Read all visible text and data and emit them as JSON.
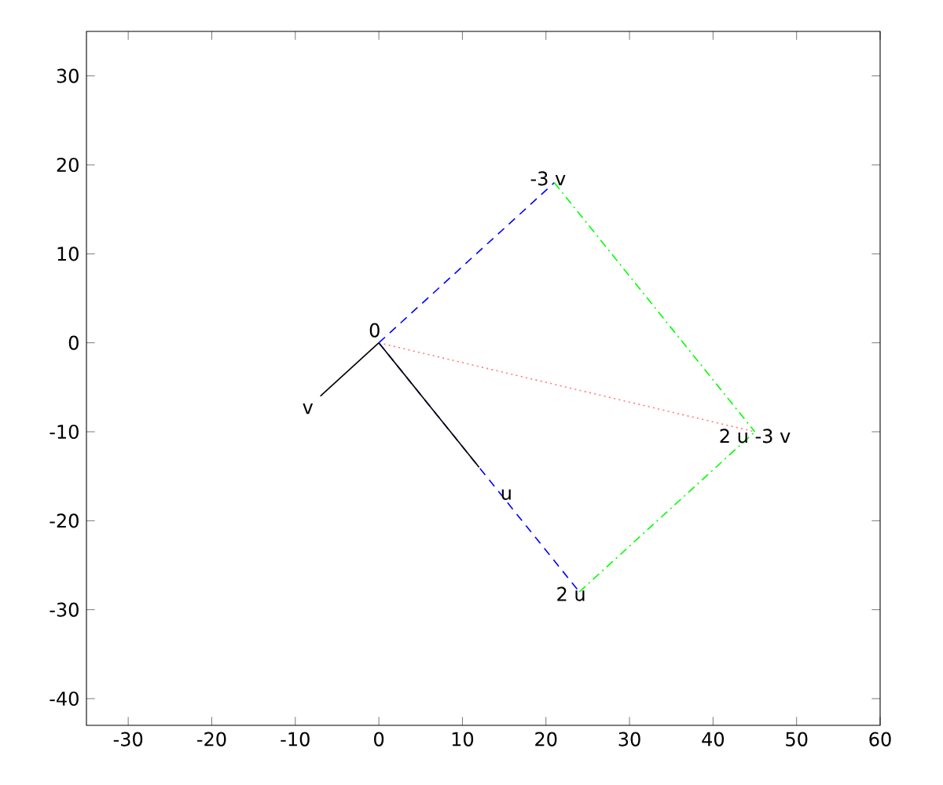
{
  "chart_data": {
    "type": "line",
    "xlim": [
      -35,
      60
    ],
    "ylim": [
      -43,
      35
    ],
    "xticks": [
      -30,
      -20,
      -10,
      0,
      10,
      20,
      30,
      40,
      50,
      60
    ],
    "yticks": [
      -40,
      -30,
      -20,
      -10,
      0,
      10,
      20,
      30
    ],
    "grid": false,
    "marker": "none",
    "series": [
      {
        "color": "#0000ff",
        "line_style": "dashed",
        "x": [
          0,
          21
        ],
        "values": [
          0,
          18
        ]
      },
      {
        "color": "#0000ff",
        "line_style": "dashed",
        "x": [
          0,
          24
        ],
        "values": [
          0,
          -28
        ]
      },
      {
        "color": "#00ff00",
        "line_style": "dashdot",
        "x": [
          21,
          45
        ],
        "values": [
          18,
          -10
        ]
      },
      {
        "color": "#00ff00",
        "line_style": "dashdot",
        "x": [
          24,
          45
        ],
        "values": [
          -28,
          -10
        ]
      },
      {
        "color": "#ff8080",
        "line_style": "dotted",
        "x": [
          0,
          45
        ],
        "values": [
          0,
          -10
        ]
      },
      {
        "color": "#000000",
        "line_style": "solid",
        "x": [
          0,
          12
        ],
        "values": [
          0,
          -14
        ]
      },
      {
        "color": "#000000",
        "line_style": "solid",
        "x": [
          0,
          -7
        ],
        "values": [
          0,
          -6
        ]
      }
    ],
    "annotations": [
      {
        "text": "0",
        "x": 0,
        "y": 0
      },
      {
        "text": "v",
        "x": -7,
        "y": -6
      },
      {
        "text": "u",
        "x": 12,
        "y": -14
      },
      {
        "text": "2 u",
        "x": 24,
        "y": -28
      },
      {
        "text": "-3 v",
        "x": 21,
        "y": 18
      },
      {
        "text": "2 u -3 v",
        "x": 45,
        "y": -10
      }
    ]
  }
}
